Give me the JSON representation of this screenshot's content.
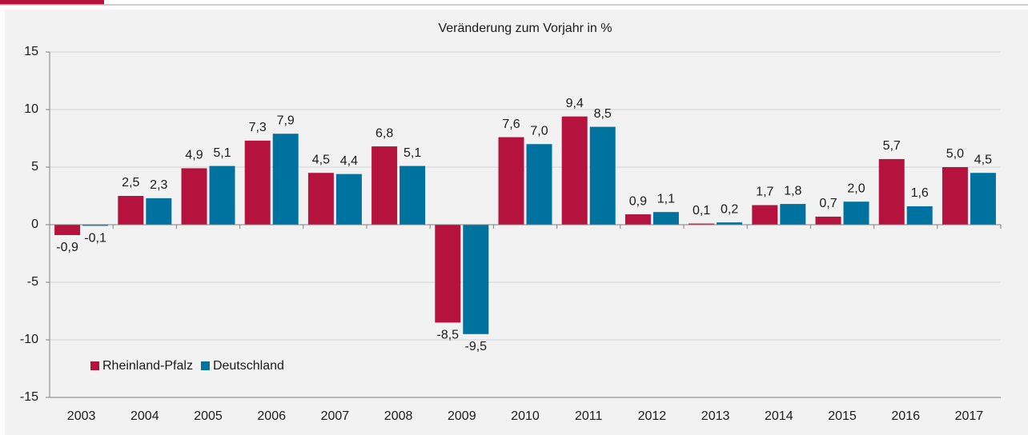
{
  "chart_data": {
    "type": "bar",
    "title": "Veränderung zum Vorjahr in %",
    "categories": [
      "2003",
      "2004",
      "2005",
      "2006",
      "2007",
      "2008",
      "2009",
      "2010",
      "2011",
      "2012",
      "2013",
      "2014",
      "2015",
      "2016",
      "2017"
    ],
    "series": [
      {
        "name": "Rheinland-Pfalz",
        "color": "#b5123e",
        "values": [
          -0.9,
          2.5,
          4.9,
          7.3,
          4.5,
          6.8,
          -8.5,
          7.6,
          9.4,
          0.9,
          0.1,
          1.7,
          0.7,
          5.7,
          5.0
        ],
        "value_labels": [
          "-0,9",
          "2,5",
          "4,9",
          "7,3",
          "4,5",
          "6,8",
          "-8,5",
          "7,6",
          "9,4",
          "0,9",
          "0,1",
          "1,7",
          "0,7",
          "5,7",
          "5,0"
        ]
      },
      {
        "name": "Deutschland",
        "color": "#0072a0",
        "values": [
          -0.1,
          2.3,
          5.1,
          7.9,
          4.4,
          5.1,
          -9.5,
          7.0,
          8.5,
          1.1,
          0.2,
          1.8,
          2.0,
          1.6,
          4.5
        ],
        "value_labels": [
          "-0,1",
          "2,3",
          "5,1",
          "7,9",
          "4,4",
          "5,1",
          "-9,5",
          "7,0",
          "8,5",
          "1,1",
          "0,2",
          "1,8",
          "2,0",
          "1,6",
          "4,5"
        ]
      }
    ],
    "ylim": [
      -15,
      15
    ],
    "yticks": [
      -15,
      -10,
      -5,
      0,
      5,
      10,
      15
    ],
    "grid": true,
    "legend": "lower left"
  }
}
